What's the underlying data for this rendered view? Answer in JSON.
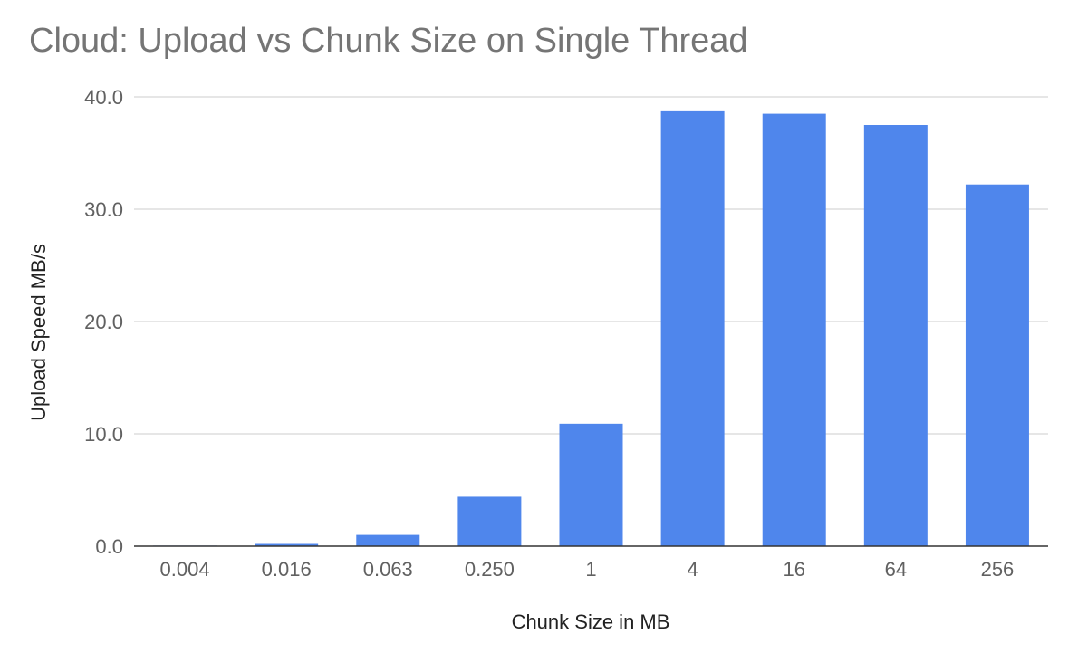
{
  "chart_data": {
    "type": "bar",
    "title": "Cloud: Upload vs Chunk Size on Single Thread",
    "xlabel": "Chunk Size in MB",
    "ylabel": "Upload Speed MB/s",
    "categories": [
      "0.004",
      "0.016",
      "0.063",
      "0.250",
      "1",
      "4",
      "16",
      "64",
      "256"
    ],
    "values": [
      0.05,
      0.2,
      1.0,
      4.4,
      10.9,
      38.8,
      38.5,
      37.5,
      32.2
    ],
    "ylim": [
      0,
      40
    ],
    "yticks": [
      "0.0",
      "10.0",
      "20.0",
      "30.0",
      "40.0"
    ],
    "ytick_values": [
      0,
      10,
      20,
      30,
      40
    ],
    "grid": true,
    "legend": "none",
    "bar_color": "#4f86ec",
    "grid_color": "#cccccc",
    "axis_color": "#333333"
  }
}
